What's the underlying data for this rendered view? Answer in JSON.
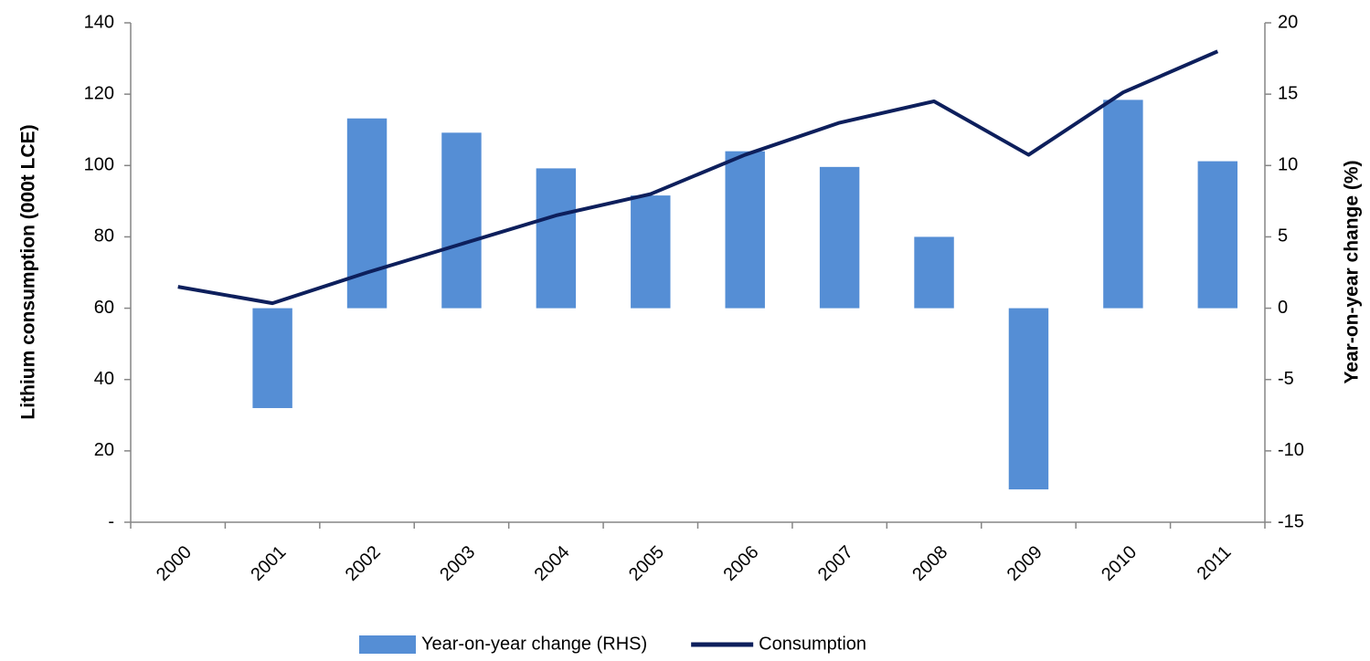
{
  "chart_data": {
    "type": "bar",
    "y_label": "Lithium consumption (000t LCE)",
    "y2_label": "Year-on-year change (%)",
    "categories": [
      "2000",
      "2001",
      "2002",
      "2003",
      "2004",
      "2005",
      "2006",
      "2007",
      "2008",
      "2009",
      "2010",
      "2011"
    ],
    "series": [
      {
        "name": "Year-on-year change (RHS)",
        "type": "bar",
        "axis": "y2",
        "color": "#558ed5",
        "values": [
          null,
          -7.0,
          13.3,
          12.3,
          9.8,
          7.9,
          11.0,
          9.9,
          5.0,
          -12.7,
          14.6,
          10.3
        ]
      },
      {
        "name": "Consumption",
        "type": "line",
        "color": "#0d1f5c",
        "values": [
          66,
          61.4,
          70,
          78,
          86,
          92,
          103,
          112,
          118,
          103,
          120.5,
          132
        ]
      }
    ],
    "ylim": [
      0,
      140
    ],
    "yticks": [
      {
        "value": 0,
        "label": "-"
      },
      20,
      40,
      60,
      80,
      100,
      120,
      140
    ],
    "y2lim": [
      -15,
      20
    ],
    "y2ticks": [
      -15,
      -10,
      -5,
      0,
      5,
      10,
      15,
      20
    ],
    "legend": "bottom"
  }
}
